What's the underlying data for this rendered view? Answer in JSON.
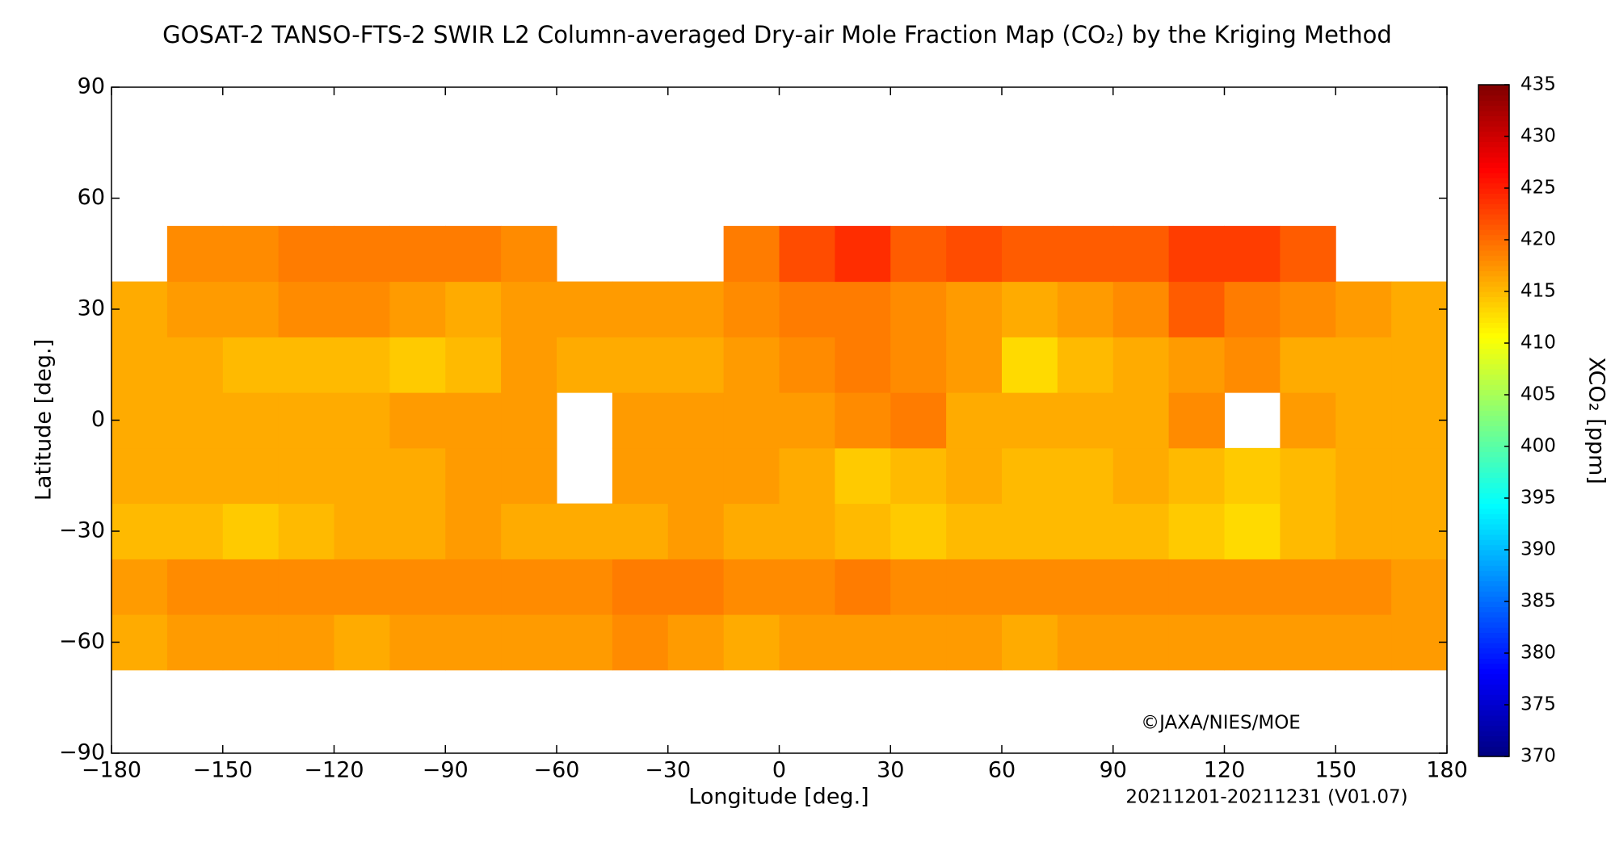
{
  "chart_data": {
    "type": "heatmap",
    "title": "GOSAT-2 TANSO-FTS-2 SWIR L2 Column-averaged Dry-air Mole Fraction Map (CO₂) by the Kriging Method",
    "x_label": "Longitude [deg.]",
    "y_label": "Latitude [deg.]",
    "colorbar_label": "XCO₂ [ppm]",
    "credit": "©JAXA/NIES/MOE",
    "period": "20211201-20211231 (V01.07)",
    "colormap": "jet",
    "xlim": [
      -180,
      180
    ],
    "ylim": [
      -90,
      90
    ],
    "xticks": [
      {
        "value": -180,
        "label": "−180"
      },
      {
        "value": -150,
        "label": "−150"
      },
      {
        "value": -120,
        "label": "−120"
      },
      {
        "value": -90,
        "label": "−90"
      },
      {
        "value": -60,
        "label": "−60"
      },
      {
        "value": -30,
        "label": "−30"
      },
      0,
      30,
      60,
      90,
      120,
      150,
      180
    ],
    "yticks": [
      {
        "value": -90,
        "label": "−90"
      },
      {
        "value": -60,
        "label": "−60"
      },
      {
        "value": -30,
        "label": "−30"
      },
      0,
      30,
      60,
      90
    ],
    "zlim": [
      370,
      435
    ],
    "zticks": [
      370,
      375,
      380,
      385,
      390,
      395,
      400,
      405,
      410,
      415,
      420,
      425,
      430,
      435
    ],
    "x_bins": [
      -180,
      -165,
      -150,
      -135,
      -120,
      -105,
      -90,
      -75,
      -60,
      -45,
      -30,
      -15,
      0,
      15,
      30,
      45,
      60,
      75,
      90,
      105,
      120,
      135,
      150,
      165,
      180
    ],
    "y_bins": [
      -67.5,
      -52.5,
      -37.5,
      -22.5,
      -7.5,
      7.5,
      22.5,
      37.5,
      52.5
    ],
    "values": [
      [
        416,
        417,
        417,
        417,
        416,
        417,
        417,
        417,
        417,
        418,
        417,
        416,
        417,
        417,
        417,
        417,
        416,
        417,
        417,
        417,
        417,
        417,
        417,
        417
      ],
      [
        417,
        418,
        418,
        418,
        418,
        418,
        418,
        418,
        418,
        419,
        419,
        418,
        418,
        419,
        418,
        418,
        418,
        418,
        418,
        418,
        418,
        418,
        418,
        417
      ],
      [
        415,
        415,
        414,
        415,
        416,
        416,
        417,
        416,
        416,
        416,
        417,
        416,
        416,
        415,
        414,
        415,
        415,
        415,
        415,
        414,
        413,
        415,
        416,
        416
      ],
      [
        416,
        416,
        416,
        416,
        416,
        416,
        417,
        417,
        null,
        417,
        417,
        417,
        416,
        414,
        415,
        416,
        415,
        415,
        416,
        415,
        414,
        415,
        416,
        416
      ],
      [
        416,
        416,
        416,
        416,
        416,
        417,
        417,
        417,
        null,
        417,
        417,
        417,
        417,
        418,
        419,
        416,
        416,
        416,
        416,
        418,
        null,
        417,
        416,
        416
      ],
      [
        416,
        416,
        415,
        415,
        415,
        414,
        415,
        417,
        416,
        416,
        416,
        417,
        418,
        419,
        418,
        417,
        413,
        415,
        416,
        417,
        418,
        416,
        416,
        416
      ],
      [
        416,
        417,
        417,
        418,
        418,
        417,
        416,
        417,
        417,
        417,
        417,
        418,
        419,
        419,
        418,
        417,
        416,
        417,
        418,
        421,
        419,
        418,
        417,
        416
      ],
      [
        null,
        418,
        418,
        419,
        419,
        419,
        419,
        418,
        null,
        null,
        null,
        419,
        422,
        424,
        421,
        422,
        421,
        421,
        421,
        423,
        423,
        421,
        null,
        null
      ]
    ]
  }
}
